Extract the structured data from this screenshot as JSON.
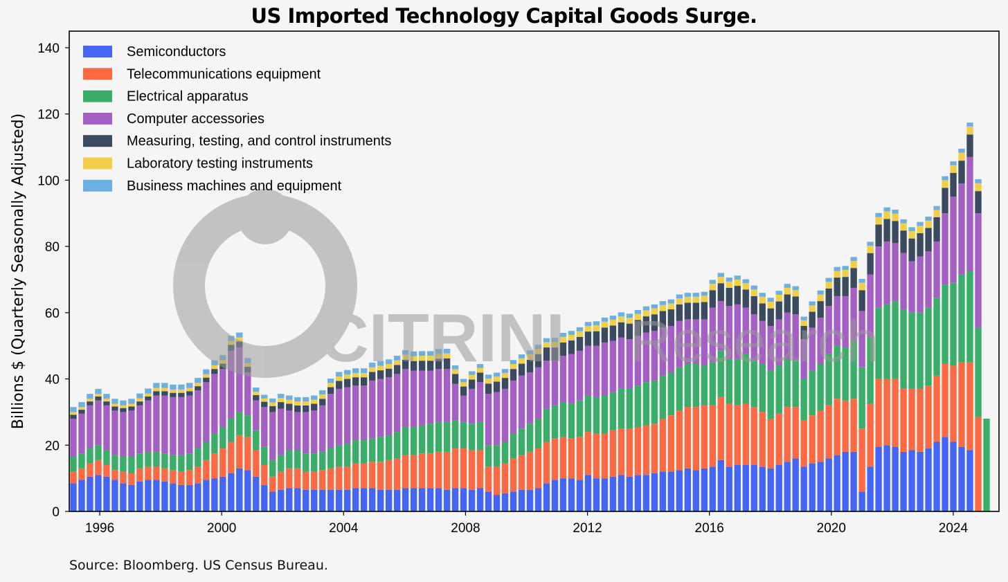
{
  "chart_data": {
    "type": "bar",
    "stacked": true,
    "title": "US Imported Technology Capital Goods Surge.",
    "xlabel": "",
    "ylabel": "Billions $ (Quarterly Seasonally Adjusted)",
    "ylim": [
      0,
      145
    ],
    "yticks": [
      0,
      20,
      40,
      60,
      80,
      100,
      120,
      140
    ],
    "xtick_labels": [
      "1996",
      "2000",
      "2004",
      "2008",
      "2012",
      "2016",
      "2020",
      "2024"
    ],
    "x_start_year": 1995,
    "x_end_year": 2025.5,
    "legend_position": "top-left",
    "grid": false,
    "series": [
      {
        "name": "Semiconductors",
        "color": "#4566f5"
      },
      {
        "name": "Telecommunications equipment",
        "color": "#fb6a42"
      },
      {
        "name": "Electrical apparatus",
        "color": "#3aae68"
      },
      {
        "name": "Computer accessories",
        "color": "#a35fc3"
      },
      {
        "name": "Measuring, testing, and control instruments",
        "color": "#3c4a5f"
      },
      {
        "name": "Laboratory testing instruments",
        "color": "#f2ce4b"
      },
      {
        "name": "Business machines and equipment",
        "color": "#6cb0e1"
      }
    ],
    "totals": [
      30.5,
      33,
      35.5,
      37,
      35,
      33.5,
      33.5,
      34,
      35.5,
      37.5,
      39.5,
      39.5,
      39,
      39,
      39.5,
      41,
      44,
      45.5,
      47,
      55.5,
      54.5,
      46.5,
      38.5,
      35,
      37,
      38,
      37,
      36,
      36.5,
      37,
      39.5,
      43.5,
      45.5,
      43.5,
      44,
      44.5,
      45.5,
      47,
      48.5,
      50,
      50.5,
      50.5,
      49,
      49.5,
      50,
      51,
      41,
      37,
      41.5,
      45.5,
      49.5,
      52,
      53,
      53.5,
      54,
      54.5,
      56.5,
      55.5,
      54.5,
      56,
      58,
      59,
      60,
      61.5,
      62,
      62,
      62,
      62.5,
      63,
      64,
      64.5,
      66,
      67,
      67.5,
      67,
      67,
      69.5,
      73.5,
      72,
      72,
      73.5,
      70,
      67,
      66,
      65.5,
      66.5,
      68,
      66.5,
      60.5,
      65,
      68,
      71,
      75,
      78,
      81,
      83.5,
      76,
      79,
      85,
      92,
      91,
      90,
      87.5,
      88,
      89.5,
      91,
      94,
      99.5,
      109.5,
      110,
      119,
      119.5
    ],
    "semiconductors": [
      8.5,
      9.5,
      10.5,
      11,
      10.5,
      9.5,
      8.5,
      8,
      9,
      9.5,
      9.5,
      9,
      8.5,
      8,
      8,
      8.5,
      9.5,
      10,
      10.5,
      11.5,
      13,
      12.5,
      10.5,
      8,
      6,
      6.5,
      7,
      7,
      6.5,
      6.5,
      6.5,
      6.5,
      6.5,
      6.5,
      7,
      7,
      7,
      6.5,
      6.5,
      6.5,
      7,
      7,
      7,
      7,
      7,
      6.5,
      7,
      7,
      6.5,
      7,
      6,
      5,
      5.5,
      6,
      6.5,
      6.5,
      7,
      8.5,
      9.5,
      10,
      10,
      9.5,
      11,
      10,
      10,
      10.5,
      11,
      10.5,
      11,
      11,
      11.5,
      12,
      12,
      12.5,
      13,
      12.5,
      13,
      13.5,
      15.5,
      13.5,
      14,
      14,
      14,
      13.5,
      13,
      14,
      15,
      16,
      13.5,
      14.5,
      15,
      16,
      17,
      18,
      18,
      6,
      13.5,
      19.5,
      20,
      19.5,
      18,
      18.5,
      18,
      19,
      21,
      22.5,
      21,
      19.5,
      18.5
    ],
    "telecom": [
      3.5,
      3.5,
      4,
      4.5,
      3.5,
      3,
      3.5,
      3.5,
      4,
      4,
      4,
      4,
      4,
      4,
      4.5,
      5,
      6,
      7.5,
      8.5,
      9.5,
      10,
      10,
      8,
      6,
      4.5,
      5.5,
      6,
      6,
      5.5,
      5.5,
      6,
      6.5,
      7,
      7,
      7.5,
      7.5,
      8,
      8.5,
      9,
      9.5,
      10,
      10,
      10.5,
      10.5,
      11,
      11.5,
      12,
      12,
      12,
      11.5,
      7.5,
      8.5,
      9,
      10,
      10.5,
      11.5,
      12,
      12.5,
      12.5,
      12.5,
      12,
      13,
      13,
      13.5,
      13.5,
      14,
      14,
      14.5,
      14.5,
      15,
      15,
      16,
      17,
      18,
      18.5,
      19,
      19,
      18.5,
      19,
      19,
      18,
      18.5,
      17.5,
      16.5,
      15,
      15.5,
      16.5,
      15.5,
      14,
      14.5,
      15.5,
      16,
      17,
      15.5,
      16,
      19,
      19,
      20.5,
      20,
      20.5,
      19,
      18.5,
      19,
      19,
      20,
      22,
      23,
      25.5,
      26.5,
      28.5
    ],
    "electrical": [
      4.5,
      4.5,
      4.5,
      4.5,
      4.5,
      4.5,
      4.5,
      5,
      4.5,
      4.5,
      4.5,
      4.5,
      4.5,
      5,
      5,
      5.5,
      5.5,
      6,
      6.5,
      7,
      7,
      6.5,
      6,
      5.5,
      5,
      5,
      5.5,
      5.5,
      5.5,
      5.5,
      5.5,
      6,
      6.5,
      7,
      7,
      7,
      7,
      7.5,
      7.5,
      8,
      8.5,
      8.5,
      8.5,
      9,
      9,
      9,
      8.5,
      8,
      8,
      8.5,
      6.5,
      6.5,
      6.5,
      7.5,
      8,
      8.5,
      9,
      10,
      10,
      10.5,
      10.5,
      11,
      11,
      11,
      11.5,
      11.5,
      12,
      12,
      12.5,
      13,
      13,
      13,
      13,
      13,
      13,
      13,
      12,
      13,
      14,
      13.5,
      14,
      15,
      14,
      14.5,
      14.5,
      14.5,
      14.5,
      14,
      12.5,
      13.5,
      14,
      15.5,
      16,
      16,
      17.5,
      18.5,
      20,
      21.5,
      22.5,
      23.5,
      24,
      23,
      23,
      23.5,
      23.5,
      24,
      25,
      26.5,
      27.5,
      27,
      28
    ],
    "computer": [
      11.5,
      12,
      13,
      13.5,
      13.5,
      13.5,
      13.5,
      14,
      14.5,
      15.5,
      17,
      17.5,
      17.5,
      17.5,
      17.5,
      17.5,
      18,
      18,
      17.5,
      20.5,
      19.5,
      13,
      9,
      12,
      14.5,
      14,
      12,
      11.5,
      12.5,
      13,
      14,
      16.5,
      17,
      17,
      16.5,
      16.5,
      17.5,
      17.5,
      17.5,
      17.5,
      17.5,
      17,
      16.5,
      16,
      16,
      16,
      11,
      8,
      10.5,
      12,
      15.5,
      16,
      16,
      16,
      16,
      15.5,
      15.5,
      14.5,
      13.5,
      14,
      15,
      15,
      15,
      15.5,
      16,
      15.5,
      15.5,
      15,
      15,
      15,
      15,
      14.5,
      14,
      14,
      13.5,
      13.5,
      14,
      16.5,
      15,
      16,
      16.5,
      14,
      14,
      13,
      13.5,
      14,
      14,
      14,
      12,
      13,
      14,
      14.5,
      15,
      15.5,
      16,
      17,
      19,
      18.5,
      19,
      17.5,
      17,
      15.5,
      17,
      17,
      17,
      21.5,
      26,
      27.5,
      34.5,
      34.5
    ],
    "measuring": [
      1.2,
      1.2,
      1.2,
      1.2,
      1.2,
      1.2,
      1.2,
      1.2,
      1.2,
      1.2,
      1.3,
      1.3,
      1.3,
      1.3,
      1.3,
      1.3,
      1.4,
      1.5,
      1.6,
      1.8,
      1.8,
      1.7,
      1.6,
      1.6,
      1.8,
      2,
      2,
      2,
      2,
      2,
      2,
      2,
      2.4,
      2.5,
      2.5,
      2.5,
      2.6,
      2.6,
      2.6,
      2.7,
      2.8,
      2.9,
      3,
      3,
      3.1,
      3.2,
      3,
      2.7,
      2.8,
      2.9,
      3.1,
      3.2,
      3.3,
      3.5,
      3.6,
      3.8,
      4,
      4,
      4,
      4,
      4.1,
      4.2,
      4.3,
      4.4,
      4.5,
      4.6,
      4.6,
      4.7,
      4.8,
      4.9,
      5,
      5,
      5,
      5,
      5,
      5,
      5.2,
      5.3,
      5.4,
      5.5,
      5.6,
      5.5,
      5.5,
      5.3,
      5.3,
      5.4,
      5.5,
      5.4,
      4,
      4.8,
      5,
      5.3,
      5.6,
      5.8,
      6,
      6.3,
      6.5,
      6.6,
      6.8,
      6.7,
      6.8,
      6.9,
      7,
      7.1,
      7.3,
      7.7,
      7.2,
      6.9,
      6.8,
      6.7
    ],
    "lab": [
      0.8,
      0.8,
      0.8,
      0.8,
      0.8,
      0.8,
      0.8,
      0.8,
      0.9,
      0.9,
      1,
      1,
      1,
      1,
      1,
      1,
      1,
      1.1,
      1.1,
      1.2,
      1.2,
      1.1,
      1,
      1,
      1.1,
      1.2,
      1.2,
      1.2,
      1.2,
      1.2,
      1.3,
      1.3,
      1.3,
      1.3,
      1.3,
      1.3,
      1.4,
      1.4,
      1.4,
      1.4,
      1.5,
      1.5,
      1.5,
      1.5,
      1.5,
      1.5,
      1.4,
      1.3,
      1.4,
      1.4,
      1.5,
      1.5,
      1.5,
      1.5,
      1.6,
      1.6,
      1.6,
      1.6,
      1.7,
      1.7,
      1.7,
      1.7,
      1.7,
      1.8,
      1.8,
      1.8,
      1.8,
      1.8,
      1.8,
      1.8,
      1.8,
      1.8,
      1.8,
      1.8,
      1.8,
      1.8,
      1.9,
      1.9,
      1.9,
      1.9,
      1.9,
      1.9,
      2,
      2,
      2,
      2,
      2,
      1.9,
      1.7,
      1.9,
      2,
      2,
      2,
      2.1,
      2.1,
      2.2,
      2.2,
      2.3,
      2.3,
      2.2,
      2.2,
      2.2,
      2.2,
      2.2,
      2.2,
      2.3,
      2.3,
      2.4,
      2.4,
      2.4
    ],
    "business": [
      1.5,
      1.5,
      1.5,
      1.5,
      1.5,
      1.5,
      1.5,
      1.5,
      1.5,
      1.5,
      1.5,
      1.5,
      1.5,
      1.5,
      1.5,
      1.5,
      1.5,
      1.5,
      1.5,
      1.5,
      1.5,
      1.5,
      1.3,
      1.1,
      1.2,
      1.3,
      1.3,
      1.3,
      1.3,
      1.3,
      1.3,
      1.3,
      1.4,
      1.4,
      1.4,
      1.4,
      1.4,
      1.4,
      1.4,
      1.4,
      1.4,
      1.4,
      1.4,
      1.4,
      1.4,
      1.4,
      1.2,
      1,
      1.1,
      1.2,
      1.2,
      1.2,
      1.2,
      1.2,
      1.2,
      1.2,
      1.2,
      1.2,
      1.2,
      1.2,
      1.2,
      1.2,
      1.2,
      1.2,
      1.2,
      1.2,
      1.2,
      1.2,
      1.2,
      1.2,
      1.2,
      1.2,
      1.2,
      1.2,
      1.2,
      1.2,
      1.2,
      1.2,
      1.2,
      1.2,
      1.2,
      1.2,
      1.2,
      1.2,
      1.2,
      1.2,
      1.2,
      1.2,
      1.1,
      1.2,
      1.2,
      1.2,
      1.2,
      1.2,
      1.2,
      1.2,
      1.2,
      1.2,
      1.2,
      1.2,
      1.2,
      1.2,
      1.2,
      1.2,
      1.2,
      1.2,
      1.2,
      1.2,
      1.2,
      1.2
    ]
  },
  "source": "Source: Bloomberg. US Census Bureau.",
  "watermark": {
    "brand": "CITRINI",
    "suffix": "Research"
  }
}
